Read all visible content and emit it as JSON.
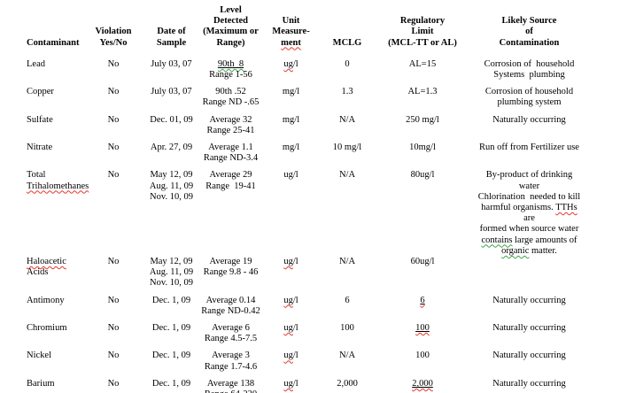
{
  "colors": {
    "text": "#000000",
    "background": "#ffffff",
    "squiggle_red": "#e8342c",
    "squiggle_green": "#3fa348",
    "value_underline": "#000000"
  },
  "table": {
    "columns": [
      {
        "id": "contaminant",
        "header": [
          [
            {
              "t": "Contaminant"
            }
          ]
        ]
      },
      {
        "id": "violation",
        "header": [
          [
            {
              "t": "Violation"
            }
          ],
          [
            {
              "t": "Yes/No"
            }
          ]
        ]
      },
      {
        "id": "date",
        "header": [
          [
            {
              "t": "Date of"
            }
          ],
          [
            {
              "t": "Sample"
            }
          ]
        ]
      },
      {
        "id": "level",
        "header": [
          [
            {
              "t": "Level"
            }
          ],
          [
            {
              "t": "Detected"
            }
          ],
          [
            {
              "t": "(Maximum or"
            }
          ],
          [
            {
              "t": "Range)"
            }
          ]
        ]
      },
      {
        "id": "unit",
        "header": [
          [
            {
              "t": "Unit"
            }
          ],
          [
            {
              "t": "Measure-"
            }
          ],
          [
            {
              "t": "ment",
              "sq": "red"
            }
          ]
        ]
      },
      {
        "id": "mclg",
        "header": [
          [
            {
              "t": "MCLG"
            }
          ]
        ]
      },
      {
        "id": "limit",
        "header": [
          [
            {
              "t": "Regulatory"
            }
          ],
          [
            {
              "t": "Limit"
            }
          ],
          [
            {
              "t": "(MCL-TT or AL)"
            }
          ]
        ]
      },
      {
        "id": "source",
        "header": [
          [
            {
              "t": "Likely Source"
            }
          ],
          [
            {
              "t": "of"
            }
          ],
          [
            {
              "t": "Contamination"
            }
          ]
        ]
      }
    ],
    "rows": [
      [
        [
          [
            {
              "t": "Lead"
            }
          ]
        ],
        [
          [
            {
              "t": "No"
            }
          ]
        ],
        [
          [
            {
              "t": "July 03, 07"
            }
          ]
        ],
        [
          [
            {
              "t": "90th  8",
              "u": true,
              "sq": "green"
            }
          ],
          [
            {
              "t": "Range 1-56"
            }
          ]
        ],
        [
          [
            {
              "t": "ug",
              "sq": "red"
            },
            {
              "t": "/l"
            }
          ]
        ],
        [
          [
            {
              "t": "0"
            }
          ]
        ],
        [
          [
            {
              "t": "AL=15"
            }
          ]
        ],
        [
          [
            {
              "t": "Corrosion of  household"
            }
          ],
          [
            {
              "t": "Systems  plumbing"
            }
          ]
        ]
      ],
      [
        [
          [
            {
              "t": "Copper"
            }
          ]
        ],
        [
          [
            {
              "t": "No"
            }
          ]
        ],
        [
          [
            {
              "t": "July 03, 07"
            }
          ]
        ],
        [
          [
            {
              "t": "90th .52"
            }
          ],
          [
            {
              "t": "Range ND -.65"
            }
          ]
        ],
        [
          [
            {
              "t": "mg/l"
            }
          ]
        ],
        [
          [
            {
              "t": "1.3"
            }
          ]
        ],
        [
          [
            {
              "t": "AL=1.3"
            }
          ]
        ],
        [
          [
            {
              "t": "Corrosion of household"
            }
          ],
          [
            {
              "t": "plumbing system"
            }
          ]
        ]
      ],
      [
        [
          [
            {
              "t": "Sulfate"
            }
          ]
        ],
        [
          [
            {
              "t": "No"
            }
          ]
        ],
        [
          [
            {
              "t": "Dec. 01, 09"
            }
          ]
        ],
        [
          [
            {
              "t": "Average 32"
            }
          ],
          [
            {
              "t": "Range 25-41"
            }
          ]
        ],
        [
          [
            {
              "t": "mg/l"
            }
          ]
        ],
        [
          [
            {
              "t": "N/A"
            }
          ]
        ],
        [
          [
            {
              "t": "250 mg/l"
            }
          ]
        ],
        [
          [
            {
              "t": "Naturally occurring"
            }
          ]
        ]
      ],
      [
        [
          [
            {
              "t": "Nitrate"
            }
          ]
        ],
        [
          [
            {
              "t": "No"
            }
          ]
        ],
        [
          [
            {
              "t": "Apr. 27, 09"
            }
          ]
        ],
        [
          [
            {
              "t": "Average 1.1"
            }
          ],
          [
            {
              "t": "Range ND-3.4"
            }
          ]
        ],
        [
          [
            {
              "t": "mg/l"
            }
          ]
        ],
        [
          [
            {
              "t": "10 mg/l"
            }
          ]
        ],
        [
          [
            {
              "t": "10mg/l"
            }
          ]
        ],
        [
          [
            {
              "t": "Run off from Fertilizer use"
            }
          ]
        ]
      ],
      [
        [
          [
            {
              "t": "Total"
            }
          ],
          [
            {
              "t": "Trihalomethanes",
              "sq": "red"
            }
          ]
        ],
        [
          [
            {
              "t": "No"
            }
          ]
        ],
        [
          [
            {
              "t": "May 12, 09"
            }
          ],
          [
            {
              "t": "Aug. 11, 09"
            }
          ],
          [
            {
              "t": "Nov. 10, 09"
            }
          ]
        ],
        [
          [
            {
              "t": "Average 29"
            }
          ],
          [
            {
              "t": "Range  19-41"
            }
          ]
        ],
        [
          [
            {
              "t": "ug/l"
            }
          ]
        ],
        [
          [
            {
              "t": "N/A"
            }
          ]
        ],
        [
          [
            {
              "t": "80ug/l"
            }
          ]
        ],
        [
          [
            {
              "t": "By-product of drinking water"
            }
          ],
          [
            {
              "t": "Chlorination  needed to kill"
            }
          ],
          [
            {
              "t": "harmful organisms. "
            },
            {
              "t": "TTHs",
              "sq": "red"
            },
            {
              "t": " are"
            }
          ],
          [
            {
              "t": "formed when source water"
            }
          ],
          [
            {
              "t": "contains",
              "sq": "green"
            },
            {
              "t": " large amounts of"
            }
          ],
          [
            {
              "t": "organic",
              "sq": "green"
            },
            {
              "t": " matter."
            }
          ]
        ]
      ],
      [
        [
          [
            {
              "t": "Haloacetic",
              "sq": "red"
            },
            {
              "t": " Acids"
            }
          ]
        ],
        [
          [
            {
              "t": "No"
            }
          ]
        ],
        [
          [
            {
              "t": "May 12, 09"
            }
          ],
          [
            {
              "t": "Aug. 11, 09"
            }
          ],
          [
            {
              "t": "Nov. 10, 09"
            }
          ]
        ],
        [
          [
            {
              "t": "Average 19"
            }
          ],
          [
            {
              "t": "Range 9.8 - 46"
            }
          ]
        ],
        [
          [
            {
              "t": "ug",
              "sq": "red"
            },
            {
              "t": "/l"
            }
          ]
        ],
        [
          [
            {
              "t": "N/A"
            }
          ]
        ],
        [
          [
            {
              "t": "60ug/l"
            }
          ]
        ],
        []
      ],
      [
        [
          [
            {
              "t": "Antimony"
            }
          ]
        ],
        [
          [
            {
              "t": "No"
            }
          ]
        ],
        [
          [
            {
              "t": "Dec. 1, 09"
            }
          ]
        ],
        [
          [
            {
              "t": "Average 0.14"
            }
          ],
          [
            {
              "t": "Range ND-0.42"
            }
          ]
        ],
        [
          [
            {
              "t": "ug",
              "sq": "red"
            },
            {
              "t": "/l"
            }
          ]
        ],
        [
          [
            {
              "t": "6"
            }
          ]
        ],
        [
          [
            {
              "t": "6",
              "u": true,
              "sq": "red"
            }
          ]
        ],
        [
          [
            {
              "t": "Naturally occurring"
            }
          ]
        ]
      ],
      [
        [
          [
            {
              "t": "Chromium"
            }
          ]
        ],
        [
          [
            {
              "t": "No"
            }
          ]
        ],
        [
          [
            {
              "t": "Dec. 1, 09"
            }
          ]
        ],
        [
          [
            {
              "t": "Average 6"
            }
          ],
          [
            {
              "t": "Range 4.5-7.5"
            }
          ]
        ],
        [
          [
            {
              "t": "ug",
              "sq": "red"
            },
            {
              "t": "/l"
            }
          ]
        ],
        [
          [
            {
              "t": "100"
            }
          ]
        ],
        [
          [
            {
              "t": "100",
              "u": true,
              "sq": "red"
            }
          ]
        ],
        [
          [
            {
              "t": "Naturally occurring"
            }
          ]
        ]
      ],
      [
        [
          [
            {
              "t": "Nickel"
            }
          ]
        ],
        [
          [
            {
              "t": "No"
            }
          ]
        ],
        [
          [
            {
              "t": "Dec. 1, 09"
            }
          ]
        ],
        [
          [
            {
              "t": "Average 3"
            }
          ],
          [
            {
              "t": "Range 1.7-4.6"
            }
          ]
        ],
        [
          [
            {
              "t": "ug",
              "sq": "red"
            },
            {
              "t": "/l"
            }
          ]
        ],
        [
          [
            {
              "t": "N/A"
            }
          ]
        ],
        [
          [
            {
              "t": "100"
            }
          ]
        ],
        [
          [
            {
              "t": "Naturally occurring"
            }
          ]
        ]
      ],
      [
        [
          [
            {
              "t": "Barium"
            }
          ]
        ],
        [
          [
            {
              "t": "No"
            }
          ]
        ],
        [
          [
            {
              "t": "Dec. 1, 09"
            }
          ]
        ],
        [
          [
            {
              "t": "Average 138"
            }
          ],
          [
            {
              "t": "Range 64-220"
            }
          ]
        ],
        [
          [
            {
              "t": "ug",
              "sq": "red"
            },
            {
              "t": "/l"
            }
          ]
        ],
        [
          [
            {
              "t": "2,000"
            }
          ]
        ],
        [
          [
            {
              "t": "2,000",
              "u": true,
              "sq": "red"
            }
          ]
        ],
        [
          [
            {
              "t": "Naturally occurring"
            }
          ]
        ]
      ]
    ]
  }
}
